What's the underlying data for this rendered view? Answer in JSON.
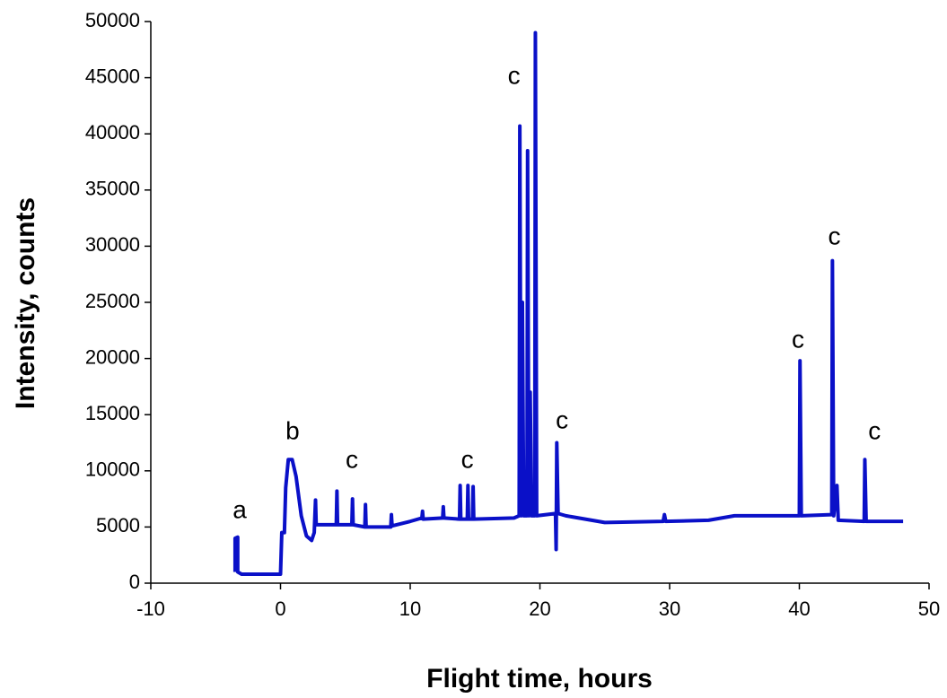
{
  "chart_data": {
    "type": "line",
    "xlabel": "Flight time, hours",
    "ylabel": "Intensity, counts",
    "xlim": [
      -10,
      50
    ],
    "xticks": [
      -10,
      0,
      10,
      20,
      30,
      40,
      50
    ],
    "ylim": [
      0,
      50000
    ],
    "yticks": [
      0,
      5000,
      10000,
      15000,
      20000,
      25000,
      30000,
      35000,
      40000,
      45000,
      50000
    ],
    "grid": false,
    "series": [
      {
        "color": "#0a10c8",
        "x": [
          -3.5,
          -3.5,
          -3.3,
          -3.3,
          -3,
          -1,
          0,
          0.1,
          0.3,
          0.4,
          0.6,
          0.9,
          1.2,
          1.6,
          2,
          2.4,
          2.6,
          2.7,
          2.75,
          4.3,
          4.35,
          4.4,
          5.5,
          5.55,
          5.6,
          6.5,
          6.55,
          6.6,
          8.5,
          8.55,
          8.6,
          10,
          10.9,
          10.95,
          11,
          12.5,
          12.55,
          12.6,
          13.8,
          13.85,
          13.9,
          14.4,
          14.45,
          14.5,
          14.8,
          14.85,
          14.9,
          18,
          18.4,
          18.45,
          18.55,
          18.65,
          18.75,
          19,
          19.05,
          19.15,
          19.25,
          19.35,
          19.6,
          19.65,
          19.75,
          21.2,
          21.25,
          21.3,
          21.4,
          22,
          25,
          29.5,
          29.6,
          29.7,
          33,
          35,
          40,
          40.05,
          40.15,
          42.5,
          42.55,
          42.65,
          42.9,
          43,
          45,
          45.05,
          45.15,
          48
        ],
        "values": [
          1000,
          4000,
          4100,
          1000,
          800,
          800,
          800,
          4500,
          4500,
          8500,
          11000,
          11000,
          9500,
          6000,
          4200,
          3800,
          4500,
          7400,
          5200,
          5200,
          8200,
          5200,
          5200,
          7500,
          5200,
          5000,
          7000,
          5000,
          5000,
          6100,
          5100,
          5500,
          5800,
          6400,
          5700,
          5800,
          6800,
          5800,
          5700,
          8700,
          5700,
          5700,
          8700,
          5700,
          5700,
          8600,
          5700,
          5800,
          6000,
          40700,
          6000,
          25000,
          6000,
          6000,
          38500,
          6000,
          17000,
          6000,
          6000,
          49000,
          6000,
          6200,
          3000,
          12500,
          6200,
          6000,
          5400,
          5500,
          6100,
          5500,
          5600,
          6000,
          6000,
          19800,
          6000,
          6100,
          28700,
          6000,
          8700,
          5600,
          5500,
          11000,
          5500,
          5500
        ]
      }
    ],
    "annotations": [
      {
        "text": "a",
        "x": -3.15,
        "y": 6400
      },
      {
        "text": "b",
        "x": 0.93,
        "y": 13400
      },
      {
        "text": "c",
        "x": 5.5,
        "y": 10860
      },
      {
        "text": "c",
        "x": 14.4,
        "y": 10860
      },
      {
        "text": "c",
        "x": 18.0,
        "y": 45050
      },
      {
        "text": "c",
        "x": 21.7,
        "y": 14380
      },
      {
        "text": "c",
        "x": 39.9,
        "y": 21570
      },
      {
        "text": "c",
        "x": 42.7,
        "y": 30750
      },
      {
        "text": "c",
        "x": 45.8,
        "y": 13420
      }
    ]
  }
}
